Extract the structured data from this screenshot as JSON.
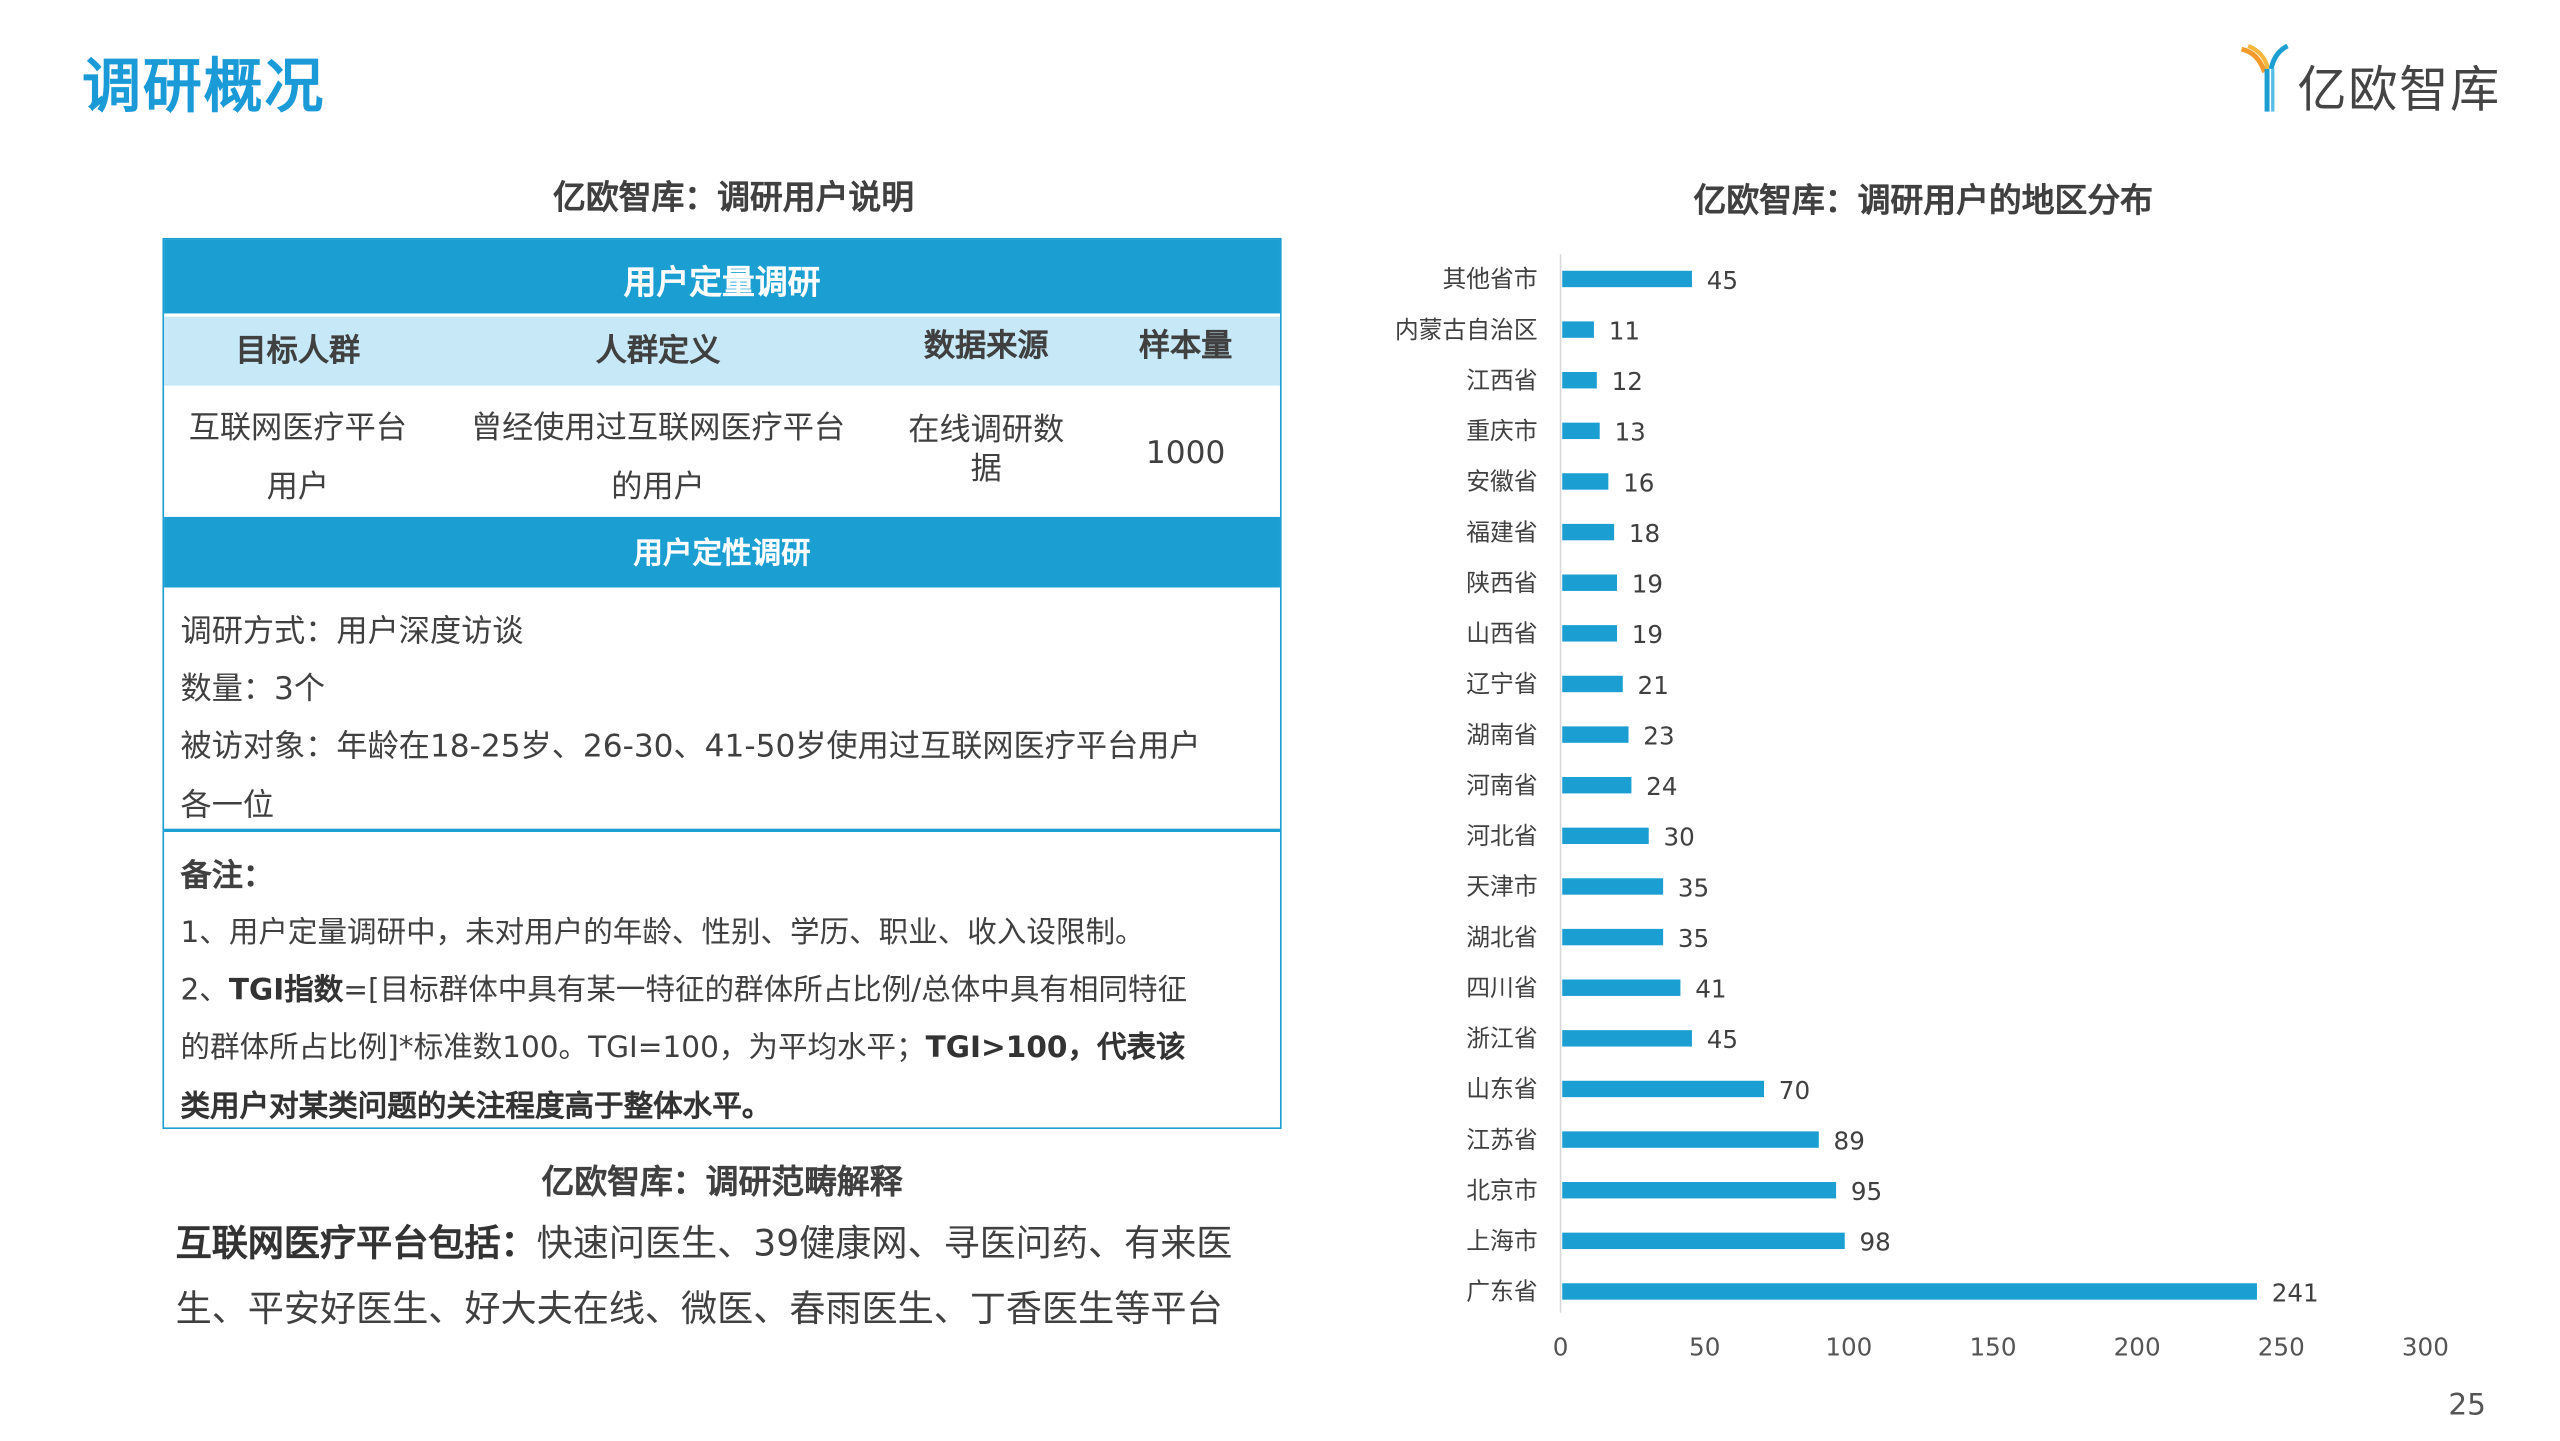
{
  "page_title": "调研概况",
  "logo": {
    "text": "亿欧智库"
  },
  "left_panel": {
    "title": "亿欧智库：调研用户说明",
    "quant_header": "用户定量调研",
    "columns": [
      "目标人群",
      "人群定义",
      "数据来源",
      "样本量"
    ],
    "row": {
      "target_line1": "互联网医疗平台",
      "target_line2": "用户",
      "definition_line1": "曾经使用过互联网医疗平台",
      "definition_line2": "的用户",
      "source_line1": "在线调研数",
      "source_line2": "据",
      "sample": "1000"
    },
    "qual_header": "用户定性调研",
    "qual_lines": [
      "调研方式：用户深度访谈",
      "数量：3个",
      "被访对象：年龄在18-25岁、26-30、41-50岁使用过互联网医疗平台用户",
      "各一位"
    ],
    "notes": {
      "label": "备注：",
      "note1": "1、用户定量调研中，未对用户的年龄、性别、学历、职业、收入设限制。",
      "note2_prefix": "2、",
      "note2_bold": "TGI指数",
      "note2_rest": "=[目标群体中具有某一特征的群体所占比例/总体中具有相同特征",
      "note3_plain": "的群体所占比例]*标准数100。TGI=100，为平均水平；",
      "note3_bold": "TGI>100，代表该",
      "note4_bold": "类用户对某类问题的关注程度高于整体水平。"
    },
    "scope_title": "亿欧智库：调研范畴解释",
    "scope_bold": "互联网医疗平台包括：",
    "scope_line1": "快速问医生、39健康网、寻医问药、有来医",
    "scope_line2": "生、平安好医生、好大夫在线、微医、春雨医生、丁香医生等平台"
  },
  "chart_data": {
    "type": "bar",
    "orientation": "horizontal",
    "title": "亿欧智库：调研用户的地区分布",
    "categories": [
      "其他省市",
      "内蒙古自治区",
      "江西省",
      "重庆市",
      "安徽省",
      "福建省",
      "陕西省",
      "山西省",
      "辽宁省",
      "湖南省",
      "河南省",
      "河北省",
      "天津市",
      "湖北省",
      "四川省",
      "浙江省",
      "山东省",
      "江苏省",
      "北京市",
      "上海市",
      "广东省"
    ],
    "values": [
      45,
      11,
      12,
      13,
      16,
      18,
      19,
      19,
      21,
      23,
      24,
      30,
      35,
      35,
      41,
      45,
      70,
      89,
      95,
      98,
      241
    ],
    "xlim": [
      0,
      300
    ],
    "xticks": [
      "0",
      "50",
      "100",
      "150",
      "200",
      "250",
      "300"
    ],
    "color": "#1b9fd3",
    "grid": false,
    "legend": "none"
  },
  "page_number": "25"
}
